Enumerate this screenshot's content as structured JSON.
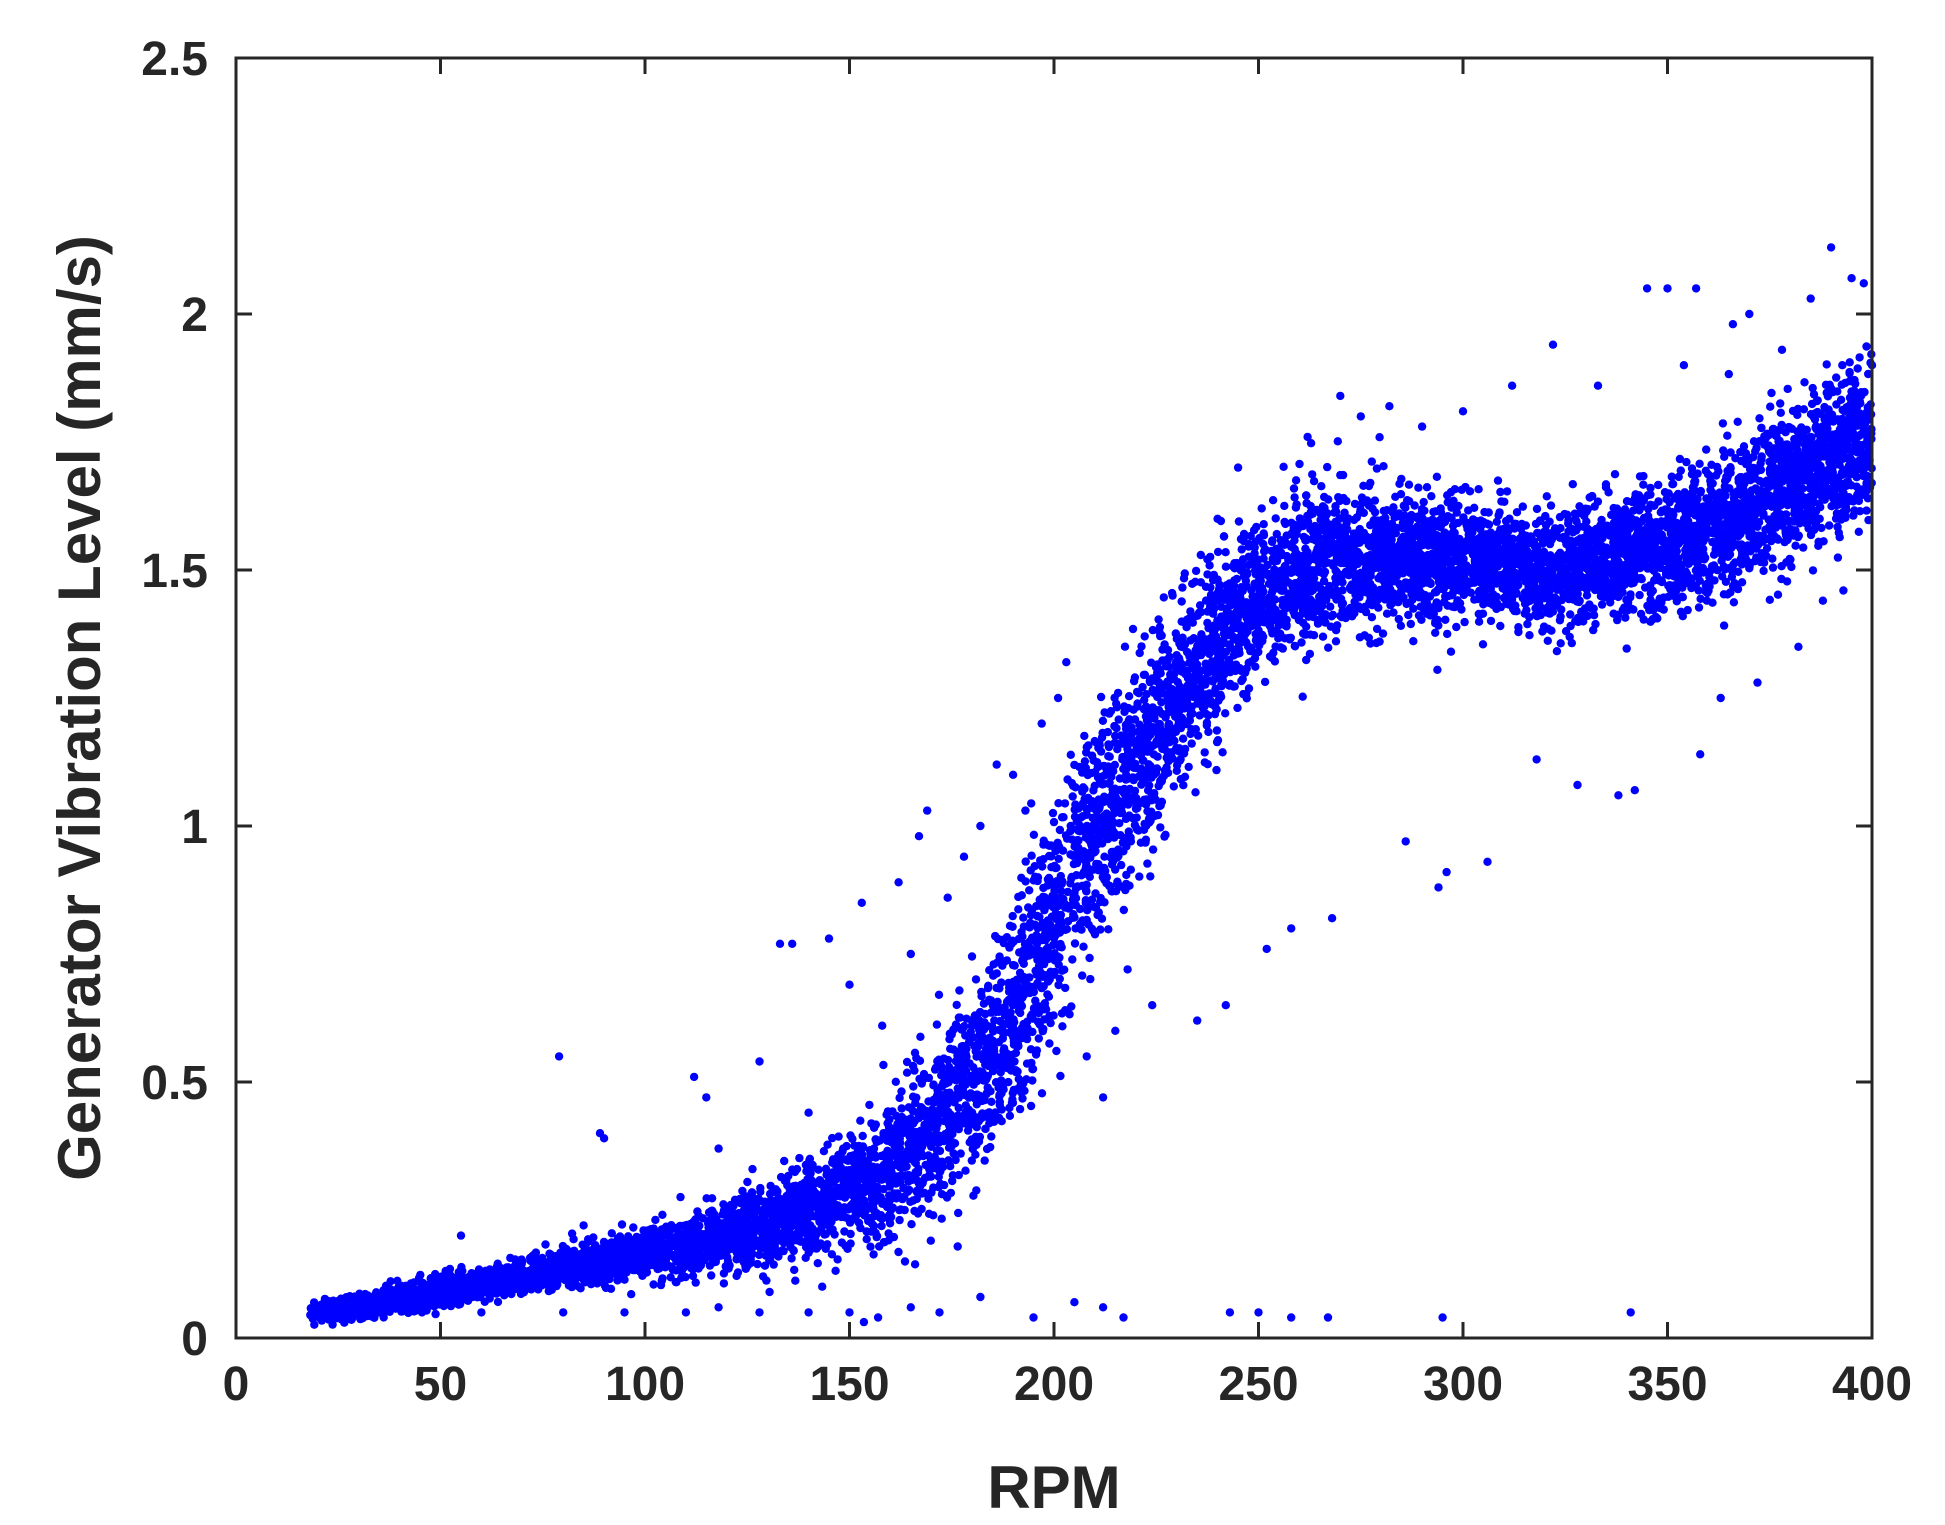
{
  "chart_data": {
    "type": "scatter",
    "title": "",
    "xlabel": "RPM",
    "ylabel": "Generator Vibration Level (mm/s)",
    "xlim": [
      0,
      400
    ],
    "ylim": [
      0,
      2.5
    ],
    "xticks": [
      0,
      50,
      100,
      150,
      200,
      250,
      300,
      350,
      400
    ],
    "xtick_labels": [
      "0",
      "50",
      "100",
      "150",
      "200",
      "250",
      "300",
      "350",
      "400"
    ],
    "yticks": [
      0,
      0.5,
      1,
      1.5,
      2,
      2.5
    ],
    "ytick_labels": [
      "0",
      "0.5",
      "1",
      "1.5",
      "2",
      "2.5"
    ],
    "grid": false,
    "legend": "none",
    "marker_color": "#0000ff",
    "axis_color": "#262626",
    "series": [
      {
        "trend": {
          "x": [
            18,
            30,
            50,
            70,
            90,
            110,
            130,
            150,
            160,
            170,
            180,
            190,
            200,
            210,
            220,
            230,
            240,
            250,
            260,
            270,
            280,
            290,
            300,
            310,
            320,
            330,
            340,
            350,
            360,
            370,
            380,
            390,
            400
          ],
          "y": [
            0.05,
            0.06,
            0.09,
            0.12,
            0.15,
            0.18,
            0.22,
            0.28,
            0.33,
            0.4,
            0.5,
            0.63,
            0.8,
            0.98,
            1.12,
            1.25,
            1.36,
            1.44,
            1.49,
            1.52,
            1.53,
            1.53,
            1.52,
            1.51,
            1.5,
            1.51,
            1.53,
            1.55,
            1.58,
            1.62,
            1.67,
            1.72,
            1.76
          ],
          "spread": [
            0.02,
            0.02,
            0.03,
            0.03,
            0.04,
            0.05,
            0.07,
            0.1,
            0.12,
            0.14,
            0.16,
            0.18,
            0.19,
            0.2,
            0.18,
            0.16,
            0.15,
            0.14,
            0.13,
            0.12,
            0.11,
            0.1,
            0.1,
            0.1,
            0.1,
            0.1,
            0.11,
            0.11,
            0.12,
            0.12,
            0.13,
            0.13,
            0.14
          ]
        },
        "points": [
          {
            "x": 20,
            "y": 0.06
          },
          {
            "x": 24,
            "y": 0.04
          },
          {
            "x": 30,
            "y": 0.07
          },
          {
            "x": 35,
            "y": 0.05
          },
          {
            "x": 40,
            "y": 0.08
          },
          {
            "x": 46,
            "y": 0.06
          },
          {
            "x": 52,
            "y": 0.11
          },
          {
            "x": 55,
            "y": 0.2
          },
          {
            "x": 60,
            "y": 0.13
          },
          {
            "x": 65,
            "y": 0.1
          },
          {
            "x": 70,
            "y": 0.15
          },
          {
            "x": 79,
            "y": 0.55
          },
          {
            "x": 85,
            "y": 0.22
          },
          {
            "x": 89,
            "y": 0.4
          },
          {
            "x": 90,
            "y": 0.39
          },
          {
            "x": 95,
            "y": 0.17
          },
          {
            "x": 100,
            "y": 0.2
          },
          {
            "x": 105,
            "y": 0.16
          },
          {
            "x": 112,
            "y": 0.51
          },
          {
            "x": 115,
            "y": 0.47
          },
          {
            "x": 118,
            "y": 0.37
          },
          {
            "x": 122,
            "y": 0.27
          },
          {
            "x": 128,
            "y": 0.54
          },
          {
            "x": 133,
            "y": 0.77
          },
          {
            "x": 136,
            "y": 0.77
          },
          {
            "x": 140,
            "y": 0.44
          },
          {
            "x": 145,
            "y": 0.78
          },
          {
            "x": 150,
            "y": 0.69
          },
          {
            "x": 153,
            "y": 0.85
          },
          {
            "x": 158,
            "y": 0.61
          },
          {
            "x": 162,
            "y": 0.89
          },
          {
            "x": 165,
            "y": 0.75
          },
          {
            "x": 167,
            "y": 0.98
          },
          {
            "x": 169,
            "y": 1.03
          },
          {
            "x": 174,
            "y": 0.86
          },
          {
            "x": 178,
            "y": 0.94
          },
          {
            "x": 182,
            "y": 1.0
          },
          {
            "x": 186,
            "y": 1.12
          },
          {
            "x": 190,
            "y": 1.1
          },
          {
            "x": 193,
            "y": 1.03
          },
          {
            "x": 197,
            "y": 1.2
          },
          {
            "x": 201,
            "y": 1.25
          },
          {
            "x": 203,
            "y": 1.32
          },
          {
            "x": 208,
            "y": 0.55
          },
          {
            "x": 212,
            "y": 0.47
          },
          {
            "x": 215,
            "y": 0.6
          },
          {
            "x": 218,
            "y": 0.72
          },
          {
            "x": 224,
            "y": 0.65
          },
          {
            "x": 229,
            "y": 1.45
          },
          {
            "x": 235,
            "y": 0.62
          },
          {
            "x": 240,
            "y": 1.6
          },
          {
            "x": 242,
            "y": 0.65
          },
          {
            "x": 245,
            "y": 1.7
          },
          {
            "x": 252,
            "y": 0.76
          },
          {
            "x": 258,
            "y": 0.8
          },
          {
            "x": 262,
            "y": 1.76
          },
          {
            "x": 268,
            "y": 0.82
          },
          {
            "x": 270,
            "y": 1.84
          },
          {
            "x": 275,
            "y": 1.8
          },
          {
            "x": 282,
            "y": 1.82
          },
          {
            "x": 286,
            "y": 0.97
          },
          {
            "x": 290,
            "y": 1.78
          },
          {
            "x": 294,
            "y": 0.88
          },
          {
            "x": 296,
            "y": 0.91
          },
          {
            "x": 300,
            "y": 1.81
          },
          {
            "x": 306,
            "y": 0.93
          },
          {
            "x": 312,
            "y": 1.86
          },
          {
            "x": 318,
            "y": 1.13
          },
          {
            "x": 322,
            "y": 1.94
          },
          {
            "x": 328,
            "y": 1.08
          },
          {
            "x": 333,
            "y": 1.86
          },
          {
            "x": 338,
            "y": 1.06
          },
          {
            "x": 342,
            "y": 1.07
          },
          {
            "x": 345,
            "y": 2.05
          },
          {
            "x": 350,
            "y": 2.05
          },
          {
            "x": 354,
            "y": 1.9
          },
          {
            "x": 357,
            "y": 2.05
          },
          {
            "x": 358,
            "y": 1.14
          },
          {
            "x": 363,
            "y": 1.25
          },
          {
            "x": 366,
            "y": 1.98
          },
          {
            "x": 370,
            "y": 2.0
          },
          {
            "x": 372,
            "y": 1.28
          },
          {
            "x": 378,
            "y": 1.93
          },
          {
            "x": 382,
            "y": 1.35
          },
          {
            "x": 385,
            "y": 2.03
          },
          {
            "x": 388,
            "y": 1.44
          },
          {
            "x": 390,
            "y": 2.13
          },
          {
            "x": 393,
            "y": 1.46
          },
          {
            "x": 395,
            "y": 2.07
          },
          {
            "x": 398,
            "y": 2.06
          },
          {
            "x": 399,
            "y": 1.64
          },
          {
            "x": 400,
            "y": 1.9
          }
        ],
        "outliers_low": [
          {
            "x": 60,
            "y": 0.05
          },
          {
            "x": 80,
            "y": 0.05
          },
          {
            "x": 95,
            "y": 0.05
          },
          {
            "x": 110,
            "y": 0.05
          },
          {
            "x": 118,
            "y": 0.06
          },
          {
            "x": 128,
            "y": 0.05
          },
          {
            "x": 140,
            "y": 0.05
          },
          {
            "x": 150,
            "y": 0.05
          },
          {
            "x": 157,
            "y": 0.04
          },
          {
            "x": 165,
            "y": 0.06
          },
          {
            "x": 172,
            "y": 0.05
          },
          {
            "x": 182,
            "y": 0.08
          },
          {
            "x": 195,
            "y": 0.04
          },
          {
            "x": 205,
            "y": 0.07
          },
          {
            "x": 212,
            "y": 0.06
          },
          {
            "x": 217,
            "y": 0.04
          },
          {
            "x": 243,
            "y": 0.05
          },
          {
            "x": 250,
            "y": 0.05
          },
          {
            "x": 258,
            "y": 0.04
          },
          {
            "x": 267,
            "y": 0.04
          },
          {
            "x": 295,
            "y": 0.04
          },
          {
            "x": 341,
            "y": 0.05
          }
        ]
      }
    ]
  }
}
